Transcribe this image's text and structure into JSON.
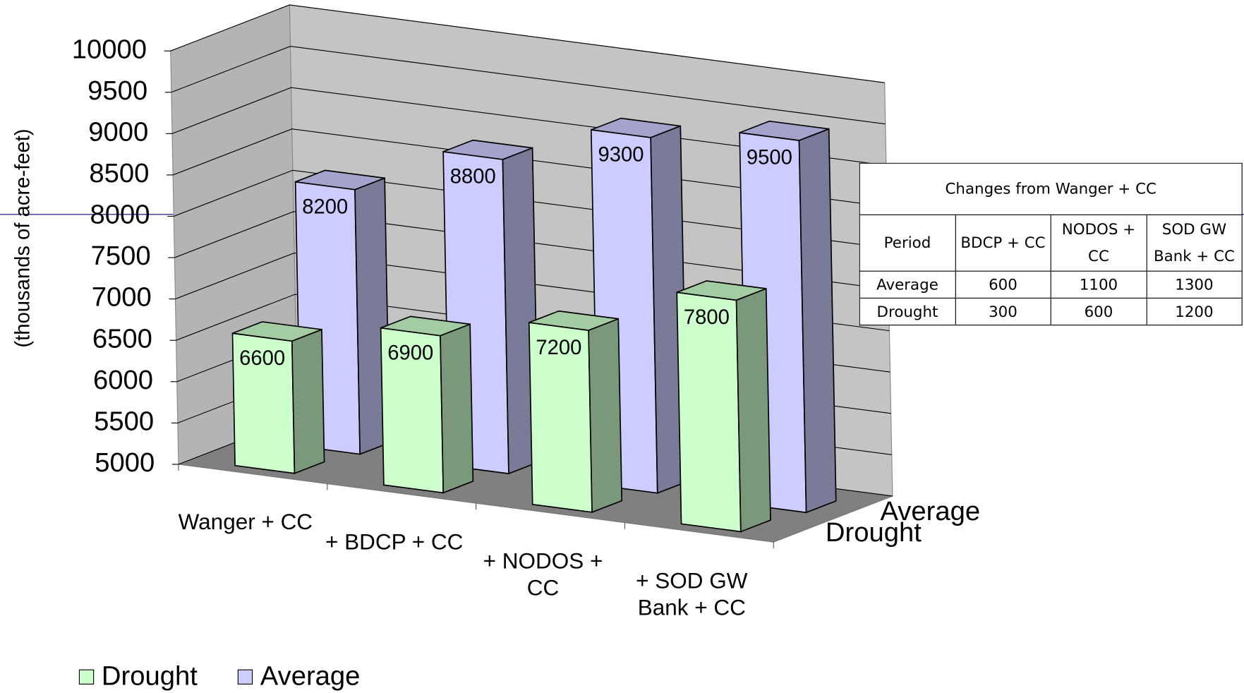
{
  "chart_data": {
    "type": "bar3d",
    "y_label": "(thousands of acre-feet)",
    "categories": [
      "Wanger + CC",
      "+ BDCP + CC",
      "+ NODOS + CC",
      "+ SOD GW Bank + CC"
    ],
    "series": [
      {
        "name": "Drought",
        "color": "#ccffcc",
        "values": [
          6600,
          6900,
          7200,
          7800
        ]
      },
      {
        "name": "Average",
        "color": "#ccccff",
        "values": [
          8200,
          8800,
          9300,
          9500
        ]
      }
    ],
    "ylim": [
      5000,
      10000
    ],
    "yticks": [
      5000,
      5500,
      6000,
      6500,
      7000,
      7500,
      8000,
      8500,
      9000,
      9500,
      10000
    ],
    "grid": true,
    "legend": "bottom-left"
  },
  "table": {
    "title": "Changes from Wanger + CC",
    "header": [
      "Period",
      "BDCP + CC",
      "NODOS + CC",
      "SOD GW Bank + CC"
    ],
    "rows": [
      [
        "Average",
        "600",
        "1100",
        "1300"
      ],
      [
        "Drought",
        "300",
        "600",
        "1200"
      ]
    ]
  }
}
